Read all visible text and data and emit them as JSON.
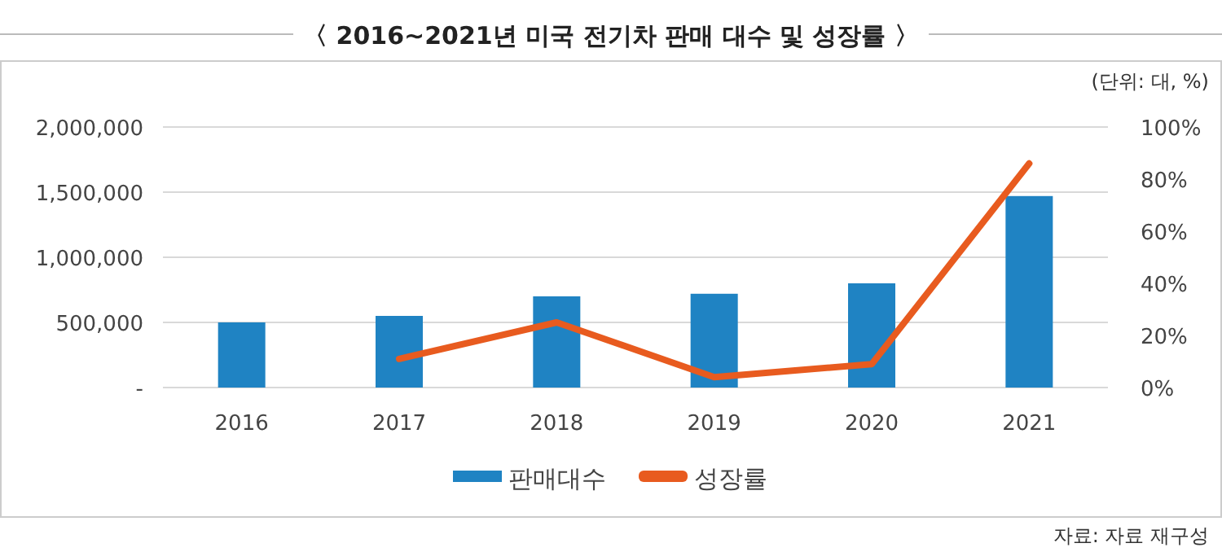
{
  "chart_data": {
    "type": "bar",
    "title": "〈 2016~2021년 미국 전기차 판매 대수 및 성장률 〉",
    "categories": [
      "2016",
      "2017",
      "2018",
      "2019",
      "2020",
      "2021"
    ],
    "series": [
      {
        "name": "판매대수",
        "color": "#1f83c3",
        "values": [
          500000,
          550000,
          700000,
          720000,
          800000,
          1470000
        ]
      },
      {
        "name": "성장률",
        "type": "line",
        "axis": "y2",
        "color": "#e85b1f",
        "values": [
          null,
          11,
          25,
          4,
          9,
          86
        ]
      }
    ],
    "ylim": [
      0,
      2000000
    ],
    "yticks": [
      {
        "value": 0,
        "label": "-"
      },
      {
        "value": 500000,
        "label": "500,000"
      },
      {
        "value": 1000000,
        "label": "1,000,000"
      },
      {
        "value": 1500000,
        "label": "1,500,000"
      },
      {
        "value": 2000000,
        "label": "2,000,000"
      }
    ],
    "y2lim": [
      0,
      100
    ],
    "y2ticks": [
      {
        "value": 0,
        "label": "0%"
      },
      {
        "value": 20,
        "label": "20%"
      },
      {
        "value": 40,
        "label": "40%"
      },
      {
        "value": 60,
        "label": "60%"
      },
      {
        "value": 80,
        "label": "80%"
      },
      {
        "value": 100,
        "label": "100%"
      }
    ],
    "grid": "y",
    "legend": "bottom",
    "marker": "none",
    "annotations": [
      "(단위: 대, %)",
      "자료: 자료 재구성"
    ]
  }
}
